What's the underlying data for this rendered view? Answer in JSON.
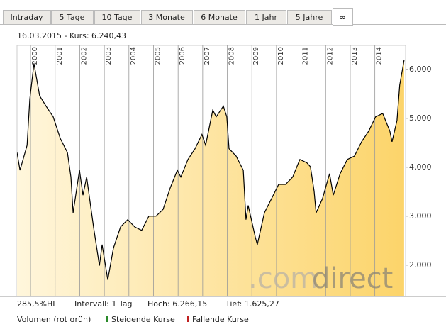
{
  "tabs": [
    "Intraday",
    "5 Tage",
    "10 Tage",
    "3 Monate",
    "6 Monate",
    "1 Jahr",
    "5 Jahre",
    "∞"
  ],
  "active_tab": 7,
  "chart_data": {
    "type": "line",
    "subtitle": "16.03.2015  -  Kurs: 6.240,43",
    "x": [
      1999.45,
      1999.57,
      1999.86,
      1999.97,
      2000.14,
      2000.37,
      2000.63,
      2000.92,
      2001.21,
      2001.5,
      2001.64,
      2001.73,
      2001.99,
      2002.13,
      2002.28,
      2002.56,
      2002.8,
      2002.91,
      2003.14,
      2003.37,
      2003.66,
      2003.95,
      2004.24,
      2004.52,
      2004.81,
      2005.1,
      2005.39,
      2005.68,
      2005.97,
      2006.11,
      2006.4,
      2006.69,
      2006.97,
      2007.12,
      2007.41,
      2007.55,
      2007.84,
      2007.98,
      2008.07,
      2008.36,
      2008.65,
      2008.76,
      2008.85,
      2009.14,
      2009.22,
      2009.51,
      2009.8,
      2010.09,
      2010.37,
      2010.66,
      2010.95,
      2011.24,
      2011.38,
      2011.53,
      2011.61,
      2011.87,
      2012.16,
      2012.31,
      2012.59,
      2012.88,
      2013.17,
      2013.46,
      2013.75,
      2014.03,
      2014.32,
      2014.61,
      2014.7,
      2014.9,
      2015.01,
      2015.19
    ],
    "values": [
      4300,
      3940,
      4450,
      5390,
      6120,
      5460,
      5250,
      5030,
      4590,
      4300,
      3800,
      3070,
      3940,
      3430,
      3800,
      2780,
      1990,
      2420,
      1700,
      2350,
      2780,
      2930,
      2780,
      2710,
      3000,
      3000,
      3140,
      3580,
      3940,
      3800,
      4160,
      4380,
      4670,
      4450,
      5170,
      5030,
      5250,
      5030,
      4380,
      4230,
      3940,
      2930,
      3220,
      2570,
      2420,
      3070,
      3360,
      3650,
      3650,
      3800,
      4160,
      4090,
      4010,
      3510,
      3070,
      3360,
      3870,
      3430,
      3870,
      4160,
      4230,
      4520,
      4740,
      5030,
      5100,
      4740,
      4520,
      4960,
      5680,
      6190
    ],
    "color": "#000000",
    "fill_colors": [
      "#fff6dc",
      "#fcd46a"
    ],
    "xlim": [
      1999.45,
      2015.25
    ],
    "xticks": [
      2000,
      2001,
      2002,
      2003,
      2004,
      2005,
      2006,
      2007,
      2008,
      2009,
      2010,
      2011,
      2012,
      2013,
      2014
    ],
    "ylim": [
      1360,
      6490
    ],
    "yticks": [
      {
        "value": 2000,
        "label": "2.000"
      },
      {
        "value": 3000,
        "label": "3.000"
      },
      {
        "value": 4000,
        "label": "4.000"
      },
      {
        "value": 5000,
        "label": "5.000"
      },
      {
        "value": 6000,
        "label": "6.000"
      }
    ],
    "footer": [
      "285,5%HL",
      "Intervall: 1 Tag",
      "Hoch: 6.266,15",
      "Tief: 1.625,27"
    ],
    "legend": [
      "Volumen (rot grün)",
      "Steigende Kurse",
      "Fallende Kurse"
    ],
    "watermark": [
      ".com",
      "direct"
    ]
  }
}
